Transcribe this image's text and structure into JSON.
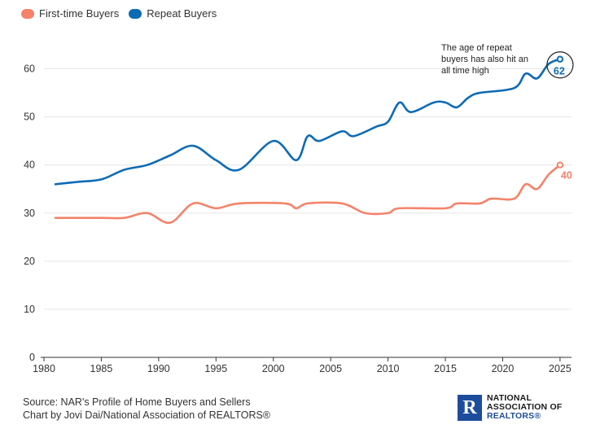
{
  "legend": {
    "first_time_label": "First-time Buyers",
    "repeat_label": "Repeat Buyers"
  },
  "colors": {
    "first_time": "#f4836b",
    "repeat": "#0d6bb5",
    "grid": "#e6e6e6",
    "axis": "#333333"
  },
  "chart_data": {
    "type": "line",
    "xlim": [
      1980,
      2026
    ],
    "ylim": [
      0,
      65
    ],
    "x_ticks": [
      1980,
      1985,
      1990,
      1995,
      2000,
      2005,
      2010,
      2015,
      2020,
      2025
    ],
    "y_ticks": [
      0,
      10,
      20,
      30,
      40,
      50,
      60
    ],
    "grid": true,
    "legend_position": "top-left",
    "series": [
      {
        "name": "First-time Buyers",
        "x": [
          1981,
          1985,
          1987,
          1989,
          1991,
          1993,
          1995,
          1997,
          2001,
          2002,
          2003,
          2006,
          2008,
          2010,
          2011,
          2015,
          2016,
          2018,
          2019,
          2021,
          2022,
          2023,
          2024,
          2025
        ],
        "values": [
          29,
          29,
          29,
          30,
          28,
          32,
          31,
          32,
          32,
          31,
          32,
          32,
          30,
          30,
          31,
          31,
          32,
          32,
          33,
          33,
          36,
          35,
          38,
          40
        ]
      },
      {
        "name": "Repeat Buyers",
        "x": [
          1981,
          1983,
          1985,
          1987,
          1989,
          1991,
          1993,
          1995,
          1997,
          2000,
          2002,
          2003,
          2004,
          2006,
          2007,
          2009,
          2010,
          2011,
          2012,
          2014,
          2015,
          2016,
          2017,
          2018,
          2021,
          2022,
          2023,
          2024,
          2025
        ],
        "values": [
          36,
          36.5,
          37,
          39,
          40,
          42,
          44,
          41,
          39,
          45,
          41,
          46,
          45,
          47,
          46,
          48,
          49,
          53,
          51,
          53,
          53,
          52,
          54,
          55,
          56,
          59,
          58,
          61,
          62
        ]
      }
    ],
    "end_labels": {
      "first_time": "40",
      "repeat": "62"
    },
    "annotation": "The age of repeat buyers has also hit an all time high"
  },
  "footer": {
    "source": "Source: NAR's Profile of Home Buyers and Sellers",
    "credit": "Chart by Jovi Dai/National Association of REALTORS®"
  },
  "logo": {
    "mark": "R",
    "line1": "NATIONAL",
    "line2": "ASSOCIATION OF",
    "line3": "REALTORS®"
  }
}
